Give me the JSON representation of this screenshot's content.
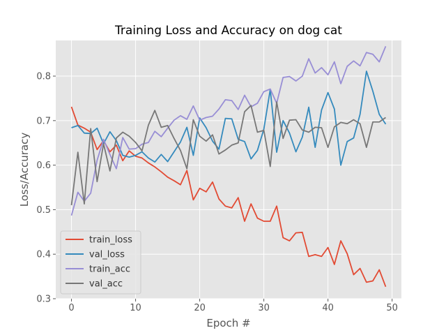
{
  "chart_data": {
    "type": "line",
    "title": "Training Loss and Accuracy on dog cat",
    "xlabel": "Epoch #",
    "ylabel": "Loss/Accuracy",
    "xlim": [
      -2.45,
      51.45
    ],
    "ylim": [
      0.3,
      0.88
    ],
    "xticks": [
      0,
      10,
      20,
      30,
      40,
      50
    ],
    "yticks": [
      0.3,
      0.4,
      0.5,
      0.6,
      0.7,
      0.8
    ],
    "grid": true,
    "legend_position": "lower-left",
    "x": [
      0,
      1,
      2,
      3,
      4,
      5,
      6,
      7,
      8,
      9,
      10,
      11,
      12,
      13,
      14,
      15,
      16,
      17,
      18,
      19,
      20,
      21,
      22,
      23,
      24,
      25,
      26,
      27,
      28,
      29,
      30,
      31,
      32,
      33,
      34,
      35,
      36,
      37,
      38,
      39,
      40,
      41,
      42,
      43,
      44,
      45,
      46,
      47,
      48,
      49
    ],
    "series": [
      {
        "name": "train_loss",
        "color": "#E24A33",
        "values": [
          0.731,
          0.69,
          0.683,
          0.674,
          0.635,
          0.655,
          0.63,
          0.645,
          0.61,
          0.632,
          0.62,
          0.616,
          0.605,
          0.596,
          0.585,
          0.573,
          0.565,
          0.556,
          0.588,
          0.522,
          0.548,
          0.54,
          0.562,
          0.524,
          0.508,
          0.504,
          0.527,
          0.474,
          0.513,
          0.481,
          0.474,
          0.474,
          0.508,
          0.437,
          0.43,
          0.448,
          0.449,
          0.395,
          0.399,
          0.395,
          0.415,
          0.377,
          0.43,
          0.401,
          0.354,
          0.368,
          0.337,
          0.34,
          0.365,
          0.327
        ]
      },
      {
        "name": "val_loss",
        "color": "#348ABD",
        "values": [
          0.684,
          0.689,
          0.672,
          0.671,
          0.683,
          0.648,
          0.675,
          0.655,
          0.622,
          0.618,
          0.622,
          0.63,
          0.616,
          0.607,
          0.624,
          0.608,
          0.63,
          0.652,
          0.685,
          0.622,
          0.706,
          0.684,
          0.654,
          0.636,
          0.705,
          0.704,
          0.658,
          0.653,
          0.614,
          0.633,
          0.681,
          0.77,
          0.629,
          0.7,
          0.672,
          0.63,
          0.663,
          0.73,
          0.64,
          0.724,
          0.763,
          0.726,
          0.6,
          0.653,
          0.661,
          0.714,
          0.811,
          0.766,
          0.714,
          0.692
        ]
      },
      {
        "name": "train_acc",
        "color": "#988ED5",
        "values": [
          0.487,
          0.539,
          0.519,
          0.537,
          0.611,
          0.658,
          0.624,
          0.592,
          0.662,
          0.636,
          0.637,
          0.647,
          0.651,
          0.676,
          0.664,
          0.683,
          0.701,
          0.711,
          0.703,
          0.733,
          0.701,
          0.707,
          0.71,
          0.726,
          0.747,
          0.745,
          0.725,
          0.757,
          0.731,
          0.739,
          0.765,
          0.771,
          0.739,
          0.797,
          0.799,
          0.789,
          0.8,
          0.839,
          0.807,
          0.819,
          0.803,
          0.832,
          0.783,
          0.822,
          0.834,
          0.823,
          0.853,
          0.849,
          0.832,
          0.867
        ]
      },
      {
        "name": "val_acc",
        "color": "#777777",
        "values": [
          0.51,
          0.629,
          0.513,
          0.682,
          0.563,
          0.648,
          0.587,
          0.661,
          0.674,
          0.665,
          0.651,
          0.632,
          0.69,
          0.723,
          0.685,
          0.689,
          0.66,
          0.633,
          0.592,
          0.702,
          0.665,
          0.654,
          0.668,
          0.625,
          0.634,
          0.645,
          0.65,
          0.72,
          0.734,
          0.674,
          0.678,
          0.597,
          0.742,
          0.66,
          0.701,
          0.702,
          0.679,
          0.674,
          0.685,
          0.684,
          0.64,
          0.686,
          0.696,
          0.693,
          0.702,
          0.693,
          0.64,
          0.697,
          0.697,
          0.707
        ]
      }
    ]
  }
}
